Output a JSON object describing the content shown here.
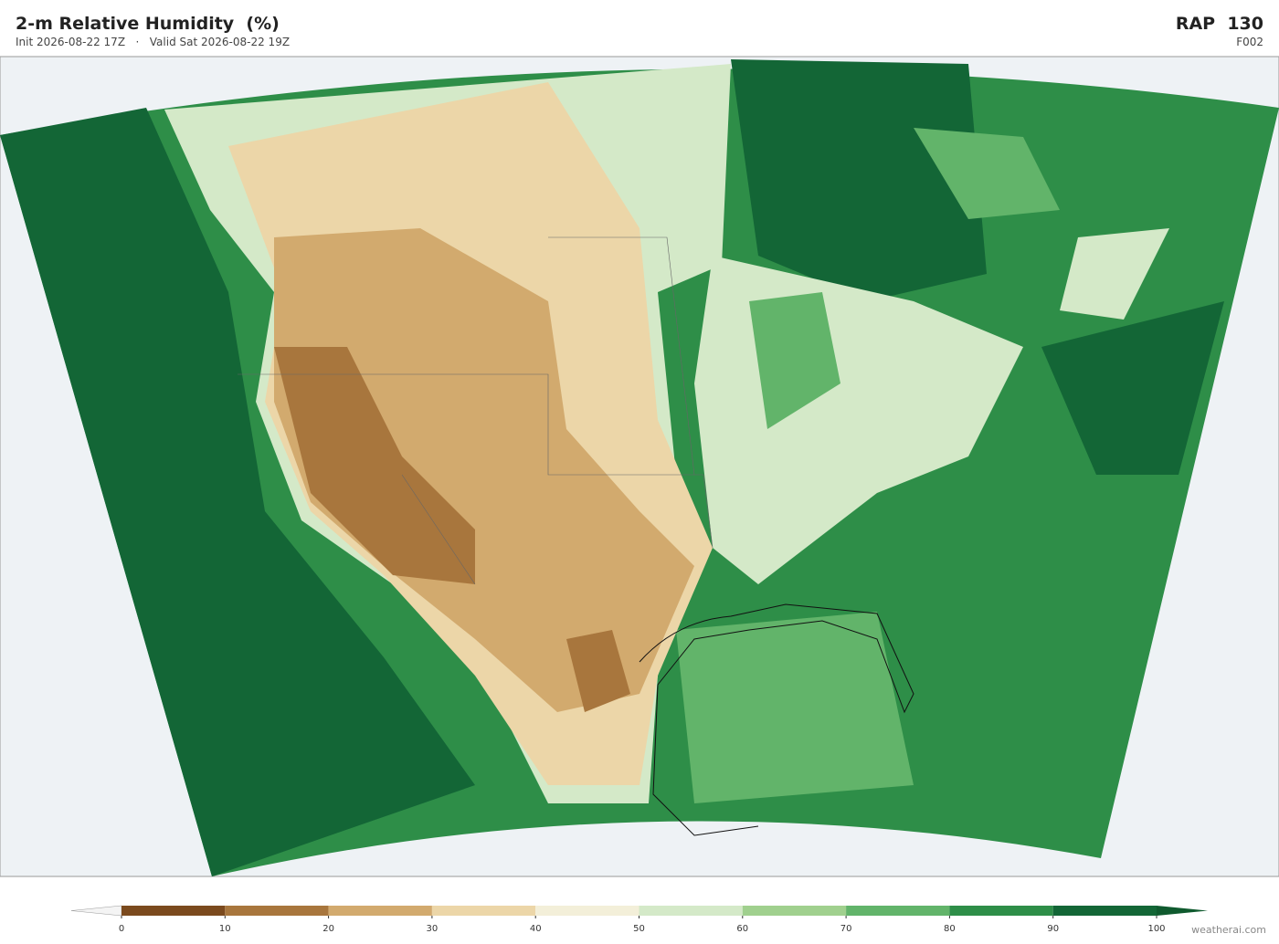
{
  "header": {
    "title": "2-m Relative Humidity  (%)",
    "init": "Init 2026-08-22 17Z",
    "separator": "·",
    "valid": "Valid Sat 2026-08-22 19Z",
    "model": "RAP  130",
    "forecast_hour": "F002"
  },
  "colorbar": {
    "ticks": [
      0,
      10,
      20,
      30,
      40,
      50,
      60,
      70,
      80,
      90,
      100
    ],
    "colors": [
      "#7b4a1e",
      "#a8763d",
      "#d2aa6e",
      "#ecd6a8",
      "#f3efd9",
      "#d4e9c8",
      "#a0d08e",
      "#62b46a",
      "#2e8e48",
      "#136636"
    ],
    "under_color": "#f4f4f4",
    "over_color": "#0f5a2e"
  },
  "footer": {
    "watermark": "weatherai.com"
  }
}
